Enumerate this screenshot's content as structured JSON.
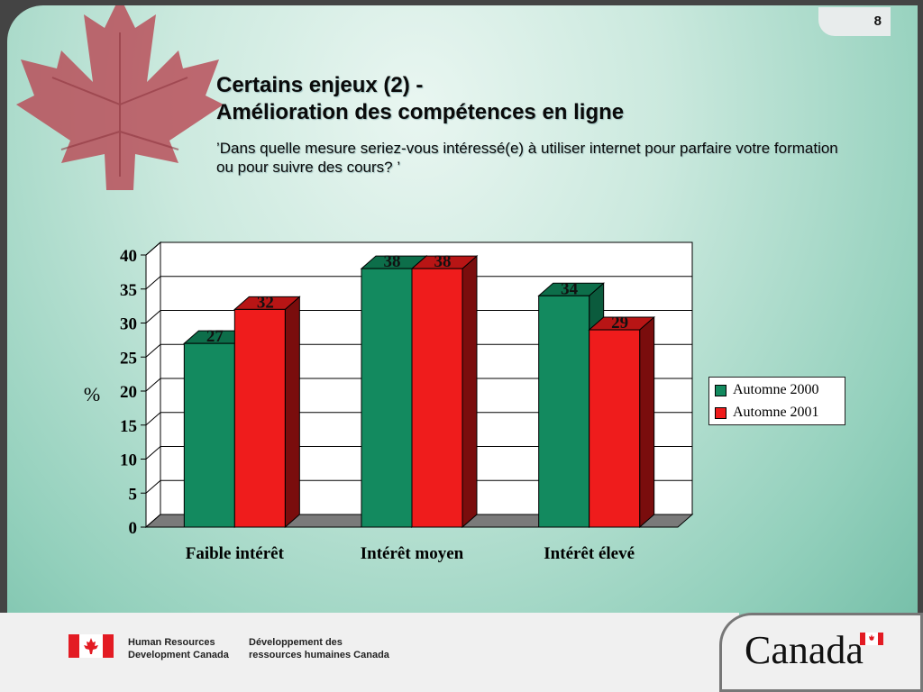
{
  "slide": {
    "page_number": "8",
    "title_line1": "Certains enjeux (2) -",
    "title_line2": "Amélioration des compétences en ligne",
    "question": "’Dans quelle mesure seriez-vous intéressé(e) à utiliser internet pour parfaire votre formation ou pour suivre des cours? ’"
  },
  "chart_data": {
    "type": "bar",
    "categories": [
      "Faible intérêt",
      "Intérêt moyen",
      "Intérêt élevé"
    ],
    "series": [
      {
        "name": "Automne 2000",
        "values": [
          27,
          38,
          34
        ],
        "color": "#138a5f"
      },
      {
        "name": "Automne 2001",
        "values": [
          32,
          38,
          29
        ],
        "color": "#ef1c1c"
      }
    ],
    "ylabel": "%",
    "ylim": [
      0,
      40
    ],
    "yticks": [
      "0",
      "5",
      "10",
      "15",
      "20",
      "25",
      "30",
      "35",
      "40"
    ],
    "grid": true,
    "legend": "right",
    "style": "3d"
  },
  "footer": {
    "dept_en_line1": "Human Resources",
    "dept_en_line2": "Development Canada",
    "dept_fr_line1": "Développement des",
    "dept_fr_line2": "ressources humaines Canada",
    "wordmark": "Canada"
  }
}
